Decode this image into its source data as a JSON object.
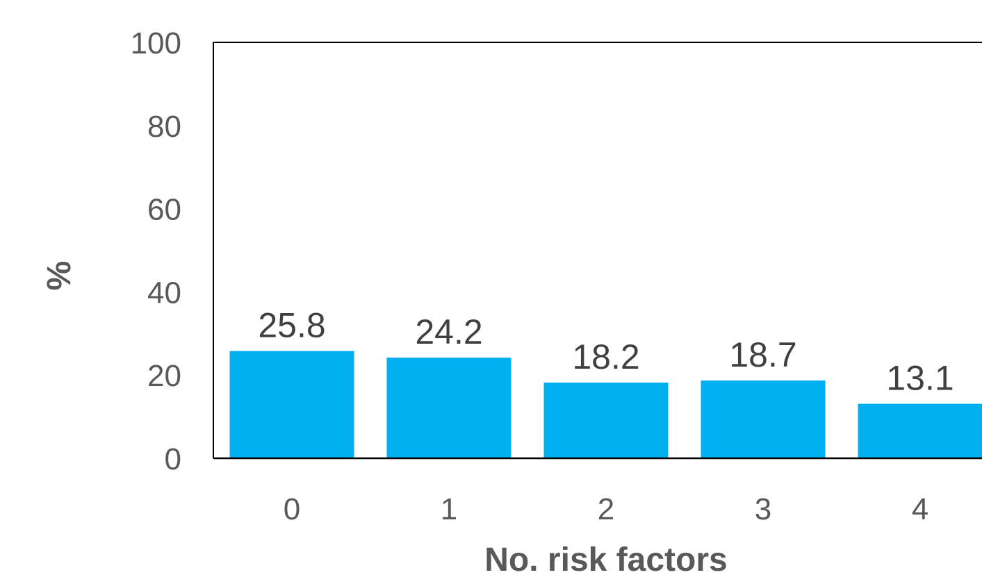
{
  "chart_data": {
    "type": "bar",
    "categories": [
      "0",
      "1",
      "2",
      "3",
      "4"
    ],
    "values": [
      25.8,
      24.2,
      18.2,
      18.7,
      13.1
    ],
    "data_labels": [
      "25.8",
      "24.2",
      "18.2",
      "18.7",
      "13.1"
    ],
    "xlabel": "No. risk factors",
    "ylabel": "%",
    "ylim": [
      0,
      100
    ],
    "yticks": [
      0,
      20,
      40,
      60,
      80,
      100
    ],
    "ytick_labels": [
      "0",
      "20",
      "40",
      "60",
      "80",
      "100"
    ],
    "grid": false,
    "bar_color": "#00B0F0",
    "text_color": "#595959"
  }
}
